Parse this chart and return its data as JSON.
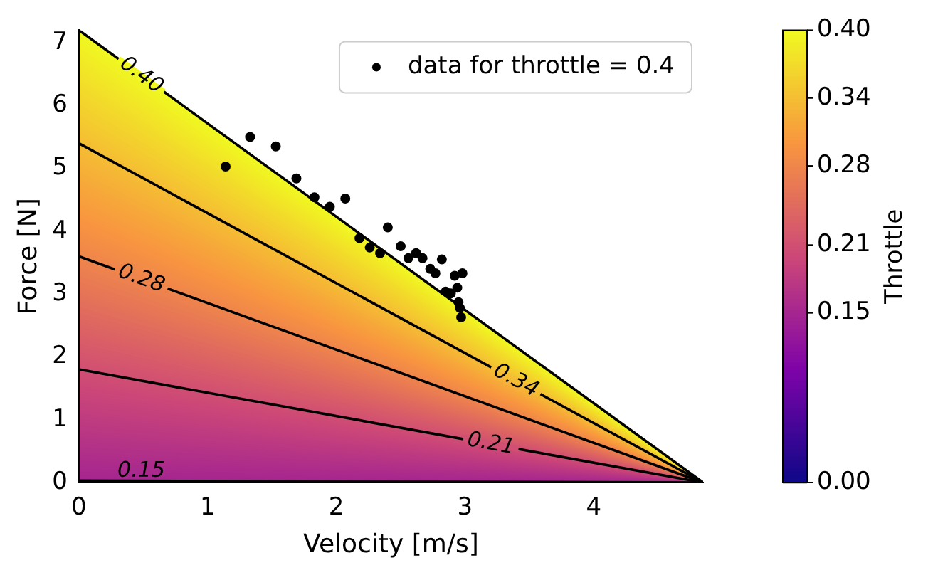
{
  "chart_data": {
    "type": "scatter",
    "xlabel": "Velocity [m/s]",
    "ylabel": "Force [N]",
    "clabel": "Throttle",
    "xlim": [
      0,
      4.85
    ],
    "xticks": [
      0,
      1,
      2,
      3,
      4
    ],
    "ylim": [
      0,
      7.2
    ],
    "yticks": [
      0,
      1,
      2,
      3,
      4,
      5,
      6,
      7
    ],
    "clim": [
      0,
      0.4
    ],
    "cticks": [
      {
        "value": 0,
        "label": "0.00"
      },
      {
        "value": 0.15,
        "label": "0.15"
      },
      {
        "value": 0.21,
        "label": "0.21"
      },
      {
        "value": 0.28,
        "label": "0.28"
      },
      {
        "value": 0.34,
        "label": "0.34"
      },
      {
        "value": 0.4,
        "label": "0.40"
      }
    ],
    "legend": "top right",
    "grid": false,
    "series": [
      {
        "name": "0.15",
        "type": "line",
        "color": "#000000",
        "x": [
          0,
          4.85
        ],
        "values": [
          0.03,
          0
        ]
      },
      {
        "name": "0.21",
        "type": "line",
        "color": "#000000",
        "x": [
          0,
          4.85
        ],
        "values": [
          1.8,
          0
        ]
      },
      {
        "name": "0.28",
        "type": "line",
        "color": "#000000",
        "x": [
          0,
          4.85
        ],
        "values": [
          3.6,
          0
        ]
      },
      {
        "name": "0.34",
        "type": "line",
        "color": "#000000",
        "x": [
          0,
          4.85
        ],
        "values": [
          5.4,
          0
        ]
      },
      {
        "name": "0.40",
        "type": "line",
        "color": "#000000",
        "x": [
          0,
          4.85
        ],
        "values": [
          7.2,
          0
        ]
      },
      {
        "name": "data for throttle = 0.4",
        "type": "scatter",
        "marker": "circle",
        "color": "#000000",
        "x": [
          1.14,
          1.33,
          1.53,
          1.69,
          1.83,
          1.95,
          2.07,
          2.18,
          2.26,
          2.34,
          2.4,
          2.5,
          2.56,
          2.62,
          2.67,
          2.73,
          2.77,
          2.82,
          2.85,
          2.89,
          2.92,
          2.94,
          2.95,
          2.96,
          2.97,
          2.98
        ],
        "values": [
          5.03,
          5.5,
          5.35,
          4.84,
          4.54,
          4.39,
          4.52,
          3.89,
          3.74,
          3.65,
          4.06,
          3.76,
          3.57,
          3.65,
          3.57,
          3.4,
          3.33,
          3.55,
          3.04,
          3.01,
          3.29,
          3.1,
          2.87,
          2.78,
          2.63,
          3.33
        ]
      }
    ]
  }
}
